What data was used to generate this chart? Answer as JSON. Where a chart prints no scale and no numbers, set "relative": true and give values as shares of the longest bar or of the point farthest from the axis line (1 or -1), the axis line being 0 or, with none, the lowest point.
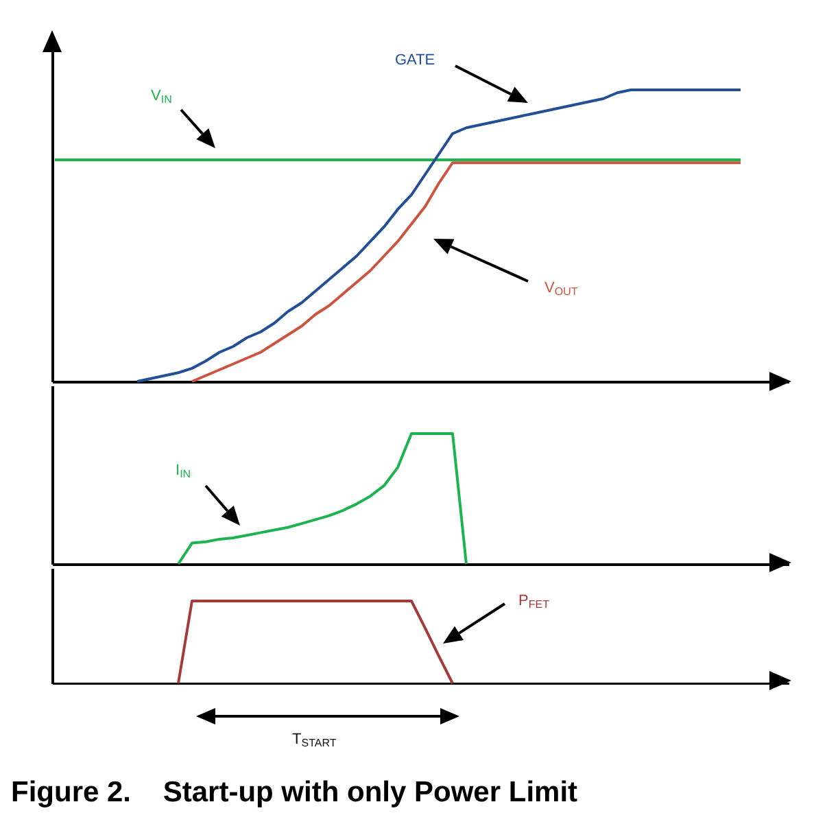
{
  "chart_data": [
    {
      "type": "line",
      "relative": true,
      "legend": false,
      "grid": false,
      "tick_labels": false,
      "categories": [
        null,
        null,
        null,
        null,
        null,
        null,
        null,
        null,
        null,
        null,
        null,
        null,
        null,
        null,
        null,
        null,
        null,
        null,
        null,
        null,
        null,
        null,
        null,
        null,
        null,
        null,
        null,
        null,
        null,
        null,
        null,
        null,
        null,
        null,
        null,
        null,
        null,
        null,
        null,
        null,
        null,
        null,
        null,
        null,
        null,
        null,
        null,
        null,
        null,
        null,
        null
      ],
      "series": [
        {
          "name": "V$_{IN}$",
          "color": "#1db34e",
          "values": [
            0.76,
            0.76,
            0.76,
            0.76,
            0.76,
            0.76,
            0.76,
            0.76,
            0.76,
            0.76,
            0.76,
            0.76,
            0.76,
            0.76,
            0.76,
            0.76,
            0.76,
            0.76,
            0.76,
            0.76,
            0.76,
            0.76,
            0.76,
            0.76,
            0.76,
            0.76,
            0.76,
            0.76,
            0.76,
            0.76,
            0.76,
            0.76,
            0.76,
            0.76,
            0.76,
            0.76,
            0.76,
            0.76,
            0.76,
            0.76,
            0.76,
            0.76,
            0.76,
            0.76,
            0.76,
            0.76,
            0.76,
            0.76,
            0.76,
            0.76,
            0.76
          ]
        },
        {
          "name": "V$_{OUT}$",
          "color": "#cc5540",
          "values": [
            null,
            null,
            null,
            null,
            null,
            null,
            null,
            null,
            null,
            null,
            0,
            0.02,
            0.04,
            0.06,
            0.08,
            0.1,
            0.13,
            0.16,
            0.19,
            0.23,
            0.26,
            0.3,
            0.34,
            0.38,
            0.43,
            0.48,
            0.54,
            0.6,
            0.68,
            0.75,
            0.75,
            0.75,
            0.75,
            0.75,
            0.75,
            0.75,
            0.75,
            0.75,
            0.75,
            0.75,
            0.75,
            0.75,
            0.75,
            0.75,
            0.75,
            0.75,
            0.75,
            0.75,
            0.75,
            0.75,
            0.75
          ]
        },
        {
          "name": "GATE",
          "color": "#234f96",
          "values": [
            null,
            null,
            null,
            null,
            null,
            null,
            0,
            0.01,
            0.02,
            0.03,
            0.045,
            0.07,
            0.1,
            0.12,
            0.15,
            0.17,
            0.2,
            0.24,
            0.27,
            0.31,
            0.35,
            0.39,
            0.43,
            0.48,
            0.53,
            0.59,
            0.64,
            0.71,
            0.78,
            0.85,
            0.87,
            0.88,
            0.89,
            0.9,
            0.91,
            0.92,
            0.93,
            0.94,
            0.95,
            0.96,
            0.97,
            0.99,
            1,
            1,
            1,
            1,
            1,
            1,
            1,
            1,
            1
          ]
        }
      ]
    },
    {
      "type": "line",
      "relative": true,
      "legend": false,
      "grid": false,
      "tick_labels": false,
      "categories": [
        null,
        null,
        null,
        null,
        null,
        null,
        null,
        null,
        null,
        null,
        null,
        null,
        null,
        null,
        null,
        null,
        null,
        null,
        null,
        null,
        null,
        null,
        null,
        null,
        null,
        null,
        null,
        null,
        null,
        null,
        null,
        null,
        null,
        null,
        null,
        null,
        null,
        null,
        null,
        null,
        null,
        null,
        null,
        null,
        null,
        null,
        null,
        null,
        null,
        null,
        null
      ],
      "series": [
        {
          "name": "I$_{IN}$",
          "color": "#1db34e",
          "values": [
            null,
            null,
            null,
            null,
            null,
            null,
            null,
            null,
            null,
            0,
            0.16,
            0.17,
            0.19,
            0.2,
            0.22,
            0.24,
            0.26,
            0.28,
            0.31,
            0.34,
            0.37,
            0.41,
            0.46,
            0.52,
            0.6,
            0.74,
            1,
            1,
            1,
            1,
            0,
            null,
            null,
            null,
            null,
            null,
            null,
            null,
            null,
            null,
            null,
            null,
            null,
            null,
            null,
            null,
            null,
            null,
            null,
            null,
            null
          ]
        }
      ]
    },
    {
      "type": "line",
      "relative": true,
      "legend": false,
      "grid": false,
      "tick_labels": false,
      "title": "Figure 2.    Start-up with only Power Limit",
      "annotations": [
        "T$_{START}$"
      ],
      "categories": [
        null,
        null,
        null,
        null,
        null,
        null,
        null,
        null,
        null,
        null,
        null,
        null,
        null,
        null,
        null,
        null,
        null,
        null,
        null,
        null,
        null,
        null,
        null,
        null,
        null,
        null,
        null,
        null,
        null,
        null,
        null,
        null,
        null,
        null,
        null,
        null,
        null,
        null,
        null,
        null,
        null,
        null,
        null,
        null,
        null,
        null,
        null,
        null,
        null,
        null,
        null
      ],
      "series": [
        {
          "name": "P$_{FET}$",
          "color": "#a33b3b",
          "values": [
            null,
            null,
            null,
            null,
            null,
            null,
            null,
            null,
            null,
            0,
            1,
            1,
            1,
            1,
            1,
            1,
            1,
            1,
            1,
            1,
            1,
            1,
            1,
            1,
            1,
            1,
            1,
            0.67,
            0.33,
            0,
            null,
            null,
            null,
            null,
            null,
            null,
            null,
            null,
            null,
            null,
            null,
            null,
            null,
            null,
            null,
            null,
            null,
            null,
            null,
            null,
            null
          ]
        }
      ]
    }
  ]
}
